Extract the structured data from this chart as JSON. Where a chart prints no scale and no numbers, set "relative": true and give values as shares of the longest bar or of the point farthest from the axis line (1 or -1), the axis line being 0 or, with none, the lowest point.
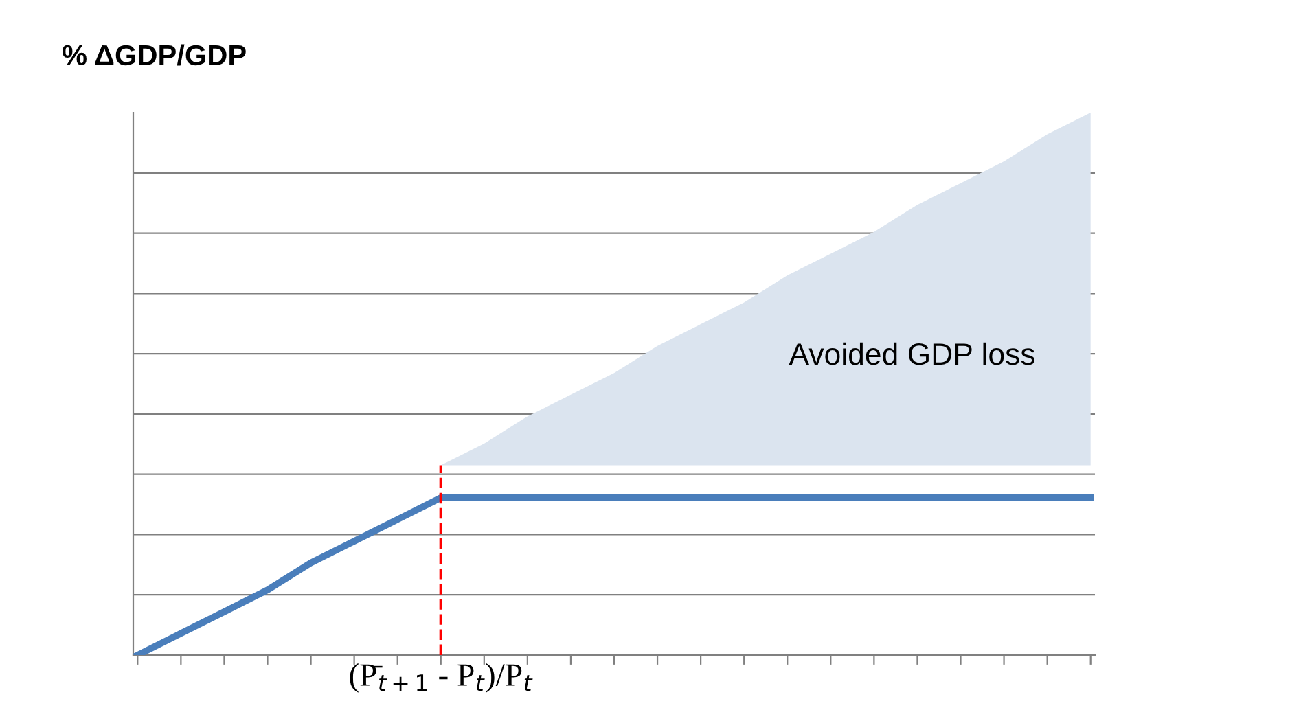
{
  "chart_data": {
    "type": "line",
    "relative": true,
    "ylabel": "% ΔGDP/GDP",
    "categories": [
      null,
      null,
      null,
      null,
      null,
      null,
      null,
      null,
      null,
      null,
      null,
      null,
      null,
      null,
      null,
      null,
      null,
      null,
      null,
      null,
      null,
      null,
      null
    ],
    "series": [
      {
        "type": "area",
        "color": "#dbe4ef",
        "values": [
          null,
          null,
          null,
          null,
          null,
          null,
          null,
          0.35,
          0.39,
          0.44,
          0.48,
          0.52,
          0.57,
          0.61,
          0.65,
          0.7,
          0.74,
          0.78,
          0.83,
          0.87,
          0.91,
          0.96,
          1.0
        ]
      },
      {
        "color": "#4a7ebb",
        "values": [
          0,
          0.04,
          0.08,
          0.12,
          0.17,
          0.21,
          0.25,
          0.29,
          0.29,
          0.29,
          0.29,
          0.29,
          0.29,
          0.29,
          0.29,
          0.29,
          0.29,
          0.29,
          0.29,
          0.29,
          0.29,
          0.29,
          0.29
        ]
      }
    ],
    "xlabel": "(P̄$_{t+1}$ - P$_{t}$)/P$_{t}$",
    "annotations": [
      "Avoided GDP loss"
    ],
    "grid": "y",
    "legend": false,
    "marker": "none",
    "line_style": "solid"
  }
}
